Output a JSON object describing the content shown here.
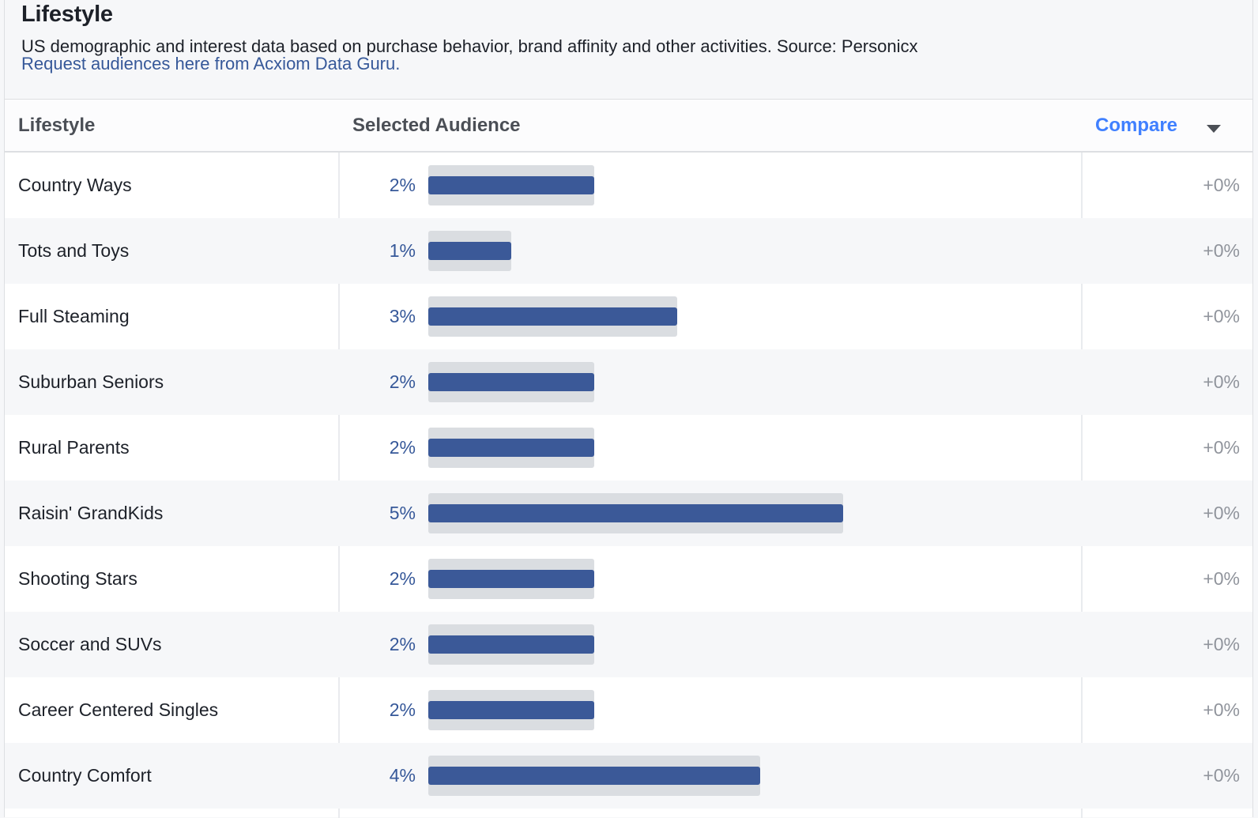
{
  "section": {
    "title": "Lifestyle",
    "description": "US demographic and interest data based on purchase behavior, brand affinity and other activities. Source: Personicx",
    "link": "Request audiences here from Acxiom Data Guru."
  },
  "table": {
    "headers": {
      "lifestyle": "Lifestyle",
      "audience": "Selected Audience",
      "compare": "Compare"
    },
    "compare_icon": "chevron-down-icon",
    "bar_color": "#3b5998",
    "track_color": "#dadde1",
    "rows": [
      {
        "name": "Country Ways",
        "pct_label": "2%",
        "value": 2,
        "compare": "+0%"
      },
      {
        "name": "Tots and Toys",
        "pct_label": "1%",
        "value": 1,
        "compare": "+0%"
      },
      {
        "name": "Full Steaming",
        "pct_label": "3%",
        "value": 3,
        "compare": "+0%"
      },
      {
        "name": "Suburban Seniors",
        "pct_label": "2%",
        "value": 2,
        "compare": "+0%"
      },
      {
        "name": "Rural Parents",
        "pct_label": "2%",
        "value": 2,
        "compare": "+0%"
      },
      {
        "name": "Raisin' GrandKids",
        "pct_label": "5%",
        "value": 5,
        "compare": "+0%"
      },
      {
        "name": "Shooting Stars",
        "pct_label": "2%",
        "value": 2,
        "compare": "+0%"
      },
      {
        "name": "Soccer and SUVs",
        "pct_label": "2%",
        "value": 2,
        "compare": "+0%"
      },
      {
        "name": "Career Centered Singles",
        "pct_label": "2%",
        "value": 2,
        "compare": "+0%"
      },
      {
        "name": "Country Comfort",
        "pct_label": "4%",
        "value": 4,
        "compare": "+0%"
      }
    ]
  }
}
